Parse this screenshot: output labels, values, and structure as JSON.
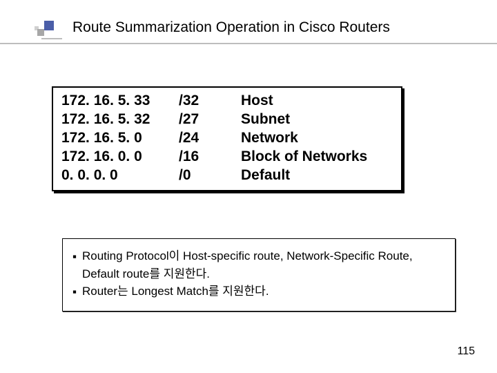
{
  "title": "Route Summarization Operation in Cisco Routers",
  "table": {
    "rows": [
      {
        "addr": "172. 16. 5. 33",
        "mask": "/32",
        "desc": "Host"
      },
      {
        "addr": "172. 16. 5. 32",
        "mask": "/27",
        "desc": "Subnet"
      },
      {
        "addr": "172. 16. 5. 0",
        "mask": "/24",
        "desc": "Network"
      },
      {
        "addr": "172. 16. 0. 0",
        "mask": "/16",
        "desc": "Block of Networks"
      },
      {
        "addr": "0. 0. 0. 0",
        "mask": "/0",
        "desc": "Default"
      }
    ]
  },
  "notes": {
    "bullet": "▪",
    "items": [
      "Routing Protocol이 Host-specific route, Network-Specific Route,  Default route를 지원한다.",
      "Router는 Longest Match를 지원한다."
    ]
  },
  "page": "115",
  "style": {
    "title_fontsize": 21,
    "table_fontsize": 21,
    "notes_fontsize": 17,
    "accent_color": "#4b5ea8",
    "text_color": "#000000",
    "background_color": "#ffffff",
    "underline_color": "#bdbdbd"
  }
}
